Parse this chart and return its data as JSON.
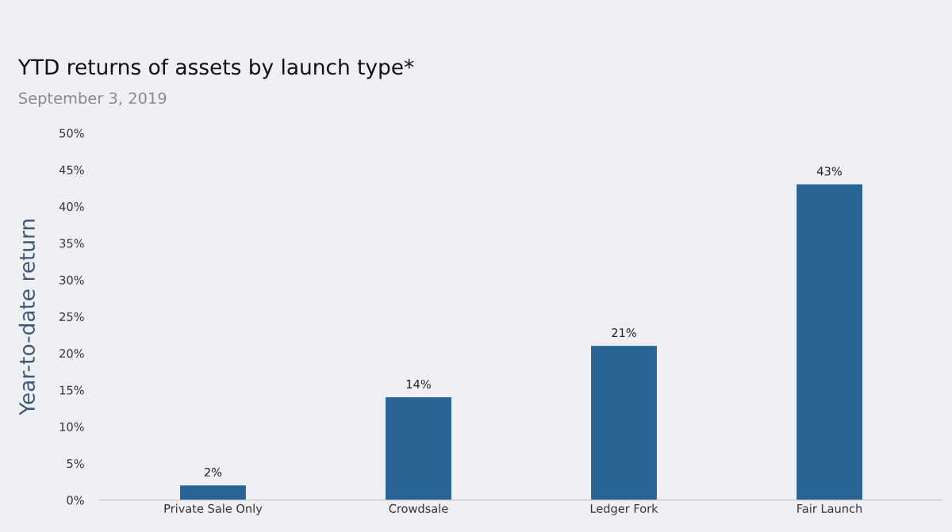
{
  "chart_data": {
    "type": "bar",
    "title": "YTD returns of assets by launch type*",
    "subtitle": "September 3, 2019",
    "ylabel": "Year-to-date return",
    "categories": [
      "Private Sale Only",
      "Crowdsale",
      "Ledger Fork",
      "Fair Launch"
    ],
    "values": [
      2,
      14,
      21,
      43
    ],
    "value_labels": [
      "2%",
      "14%",
      "21%",
      "43%"
    ],
    "color": "#296496",
    "ylim": [
      0,
      50
    ],
    "yticks": [
      {
        "value": 0,
        "label": "0%"
      },
      {
        "value": 5,
        "label": "5%"
      },
      {
        "value": 10,
        "label": "10%"
      },
      {
        "value": 15,
        "label": "15%"
      },
      {
        "value": 20,
        "label": "20%"
      },
      {
        "value": 25,
        "label": "25%"
      },
      {
        "value": 30,
        "label": "30%"
      },
      {
        "value": 35,
        "label": "35%"
      },
      {
        "value": 40,
        "label": "40%"
      },
      {
        "value": 45,
        "label": "45%"
      },
      {
        "value": 50,
        "label": "50%"
      }
    ],
    "grid": false,
    "legend": false
  }
}
